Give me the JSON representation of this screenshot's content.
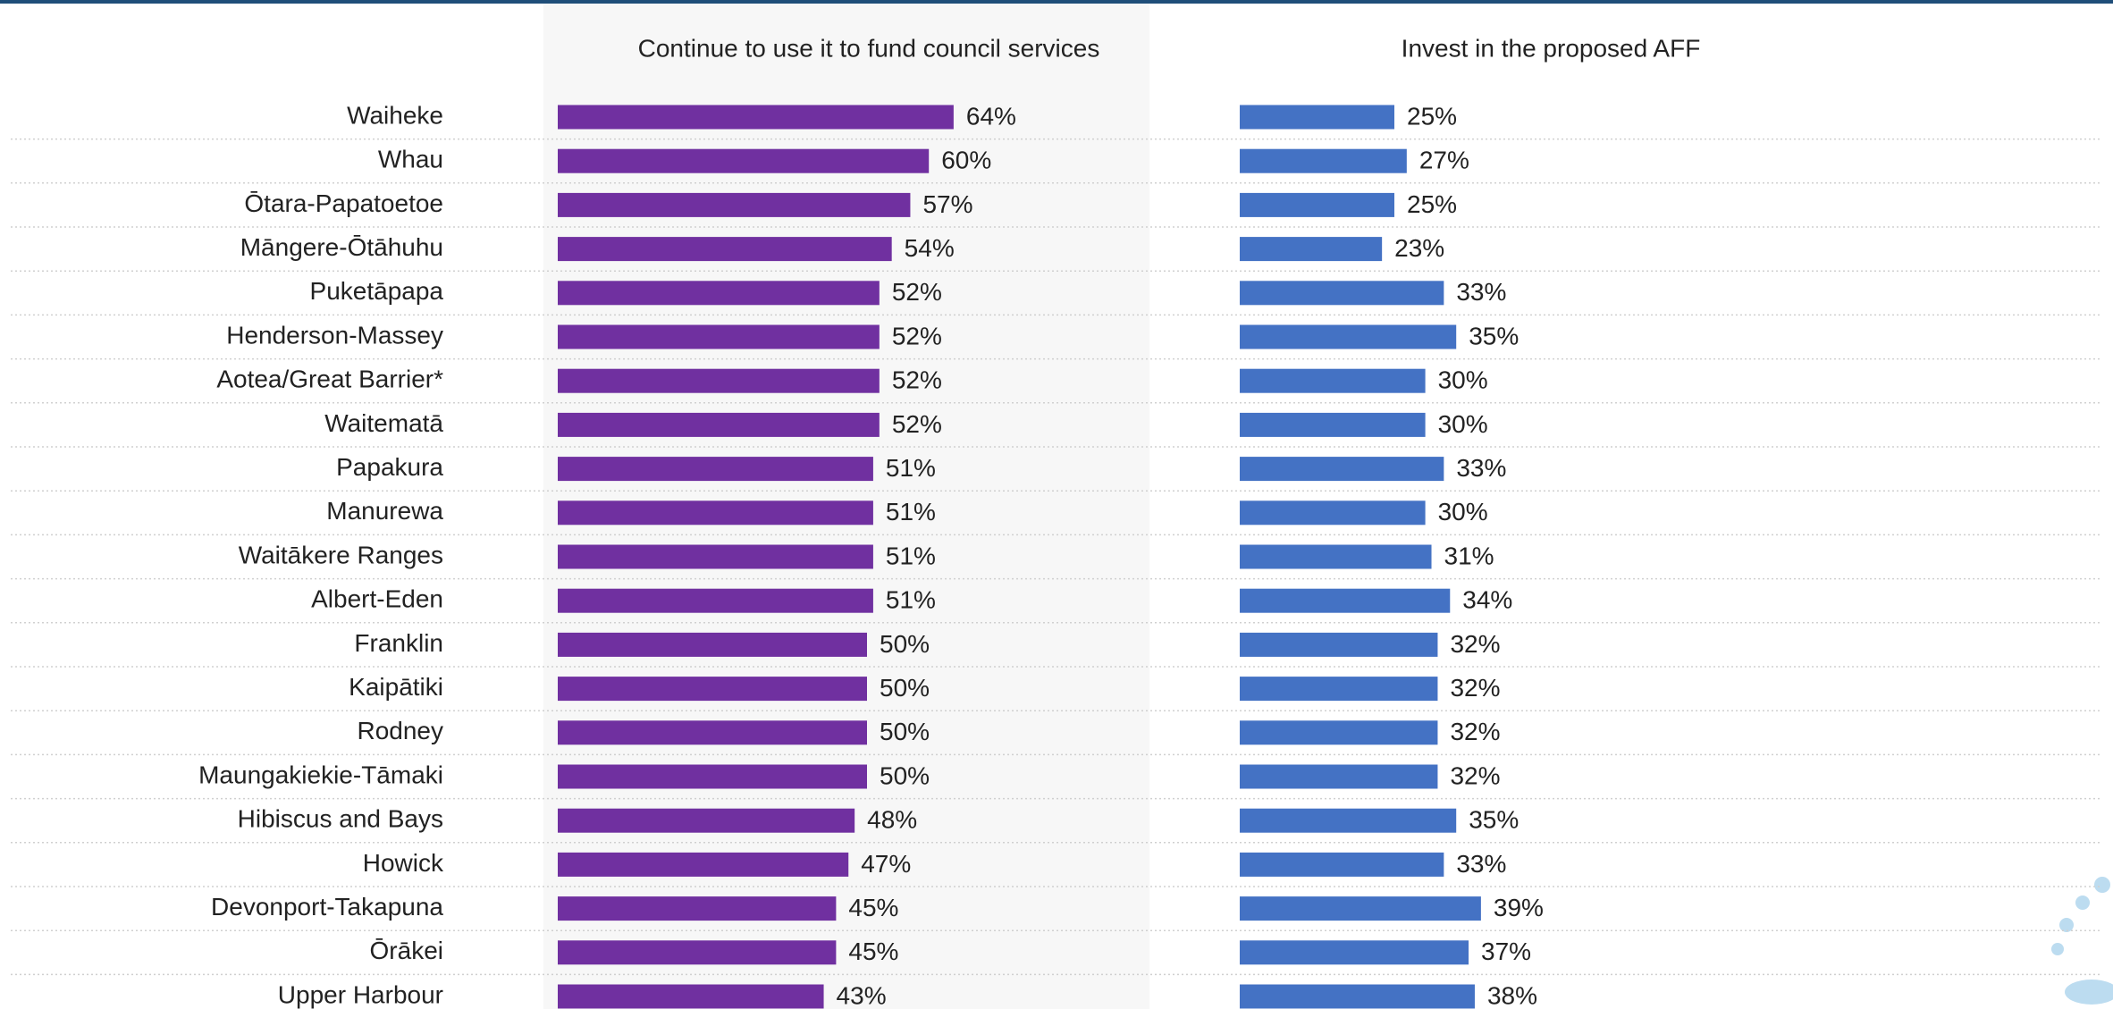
{
  "chart_data": {
    "type": "bar",
    "orientation": "horizontal",
    "categories": [
      "Waiheke",
      "Whau",
      "Ōtara-Papatoetoe",
      "Māngere-Ōtāhuhu",
      "Puketāpapa",
      "Henderson-Massey",
      "Aotea/Great Barrier*",
      "Waitematā",
      "Papakura",
      "Manurewa",
      "Waitākere Ranges",
      "Albert-Eden",
      "Franklin",
      "Kaipātiki",
      "Rodney",
      "Maungakiekie-Tāmaki",
      "Hibiscus and Bays",
      "Howick",
      "Devonport-Takapuna",
      "Ōrākei",
      "Upper Harbour"
    ],
    "series": [
      {
        "name": "Continue to use it to fund council services",
        "color": "#7030a0",
        "values": [
          64,
          60,
          57,
          54,
          52,
          52,
          52,
          52,
          51,
          51,
          51,
          51,
          50,
          50,
          50,
          50,
          48,
          47,
          45,
          45,
          43
        ],
        "value_labels": [
          "64%",
          "60%",
          "57%",
          "54%",
          "52%",
          "52%",
          "52%",
          "52%",
          "51%",
          "51%",
          "51%",
          "51%",
          "50%",
          "50%",
          "50%",
          "50%",
          "48%",
          "47%",
          "45%",
          "45%",
          "43%"
        ]
      },
      {
        "name": "Invest in the proposed AFF",
        "color": "#4472c4",
        "values": [
          25,
          27,
          25,
          23,
          33,
          35,
          30,
          30,
          33,
          30,
          31,
          34,
          32,
          32,
          32,
          32,
          35,
          33,
          39,
          37,
          38
        ],
        "value_labels": [
          "25%",
          "27%",
          "25%",
          "23%",
          "33%",
          "35%",
          "30%",
          "30%",
          "33%",
          "30%",
          "31%",
          "34%",
          "32%",
          "32%",
          "32%",
          "32%",
          "35%",
          "33%",
          "39%",
          "37%",
          "38%"
        ]
      }
    ]
  }
}
